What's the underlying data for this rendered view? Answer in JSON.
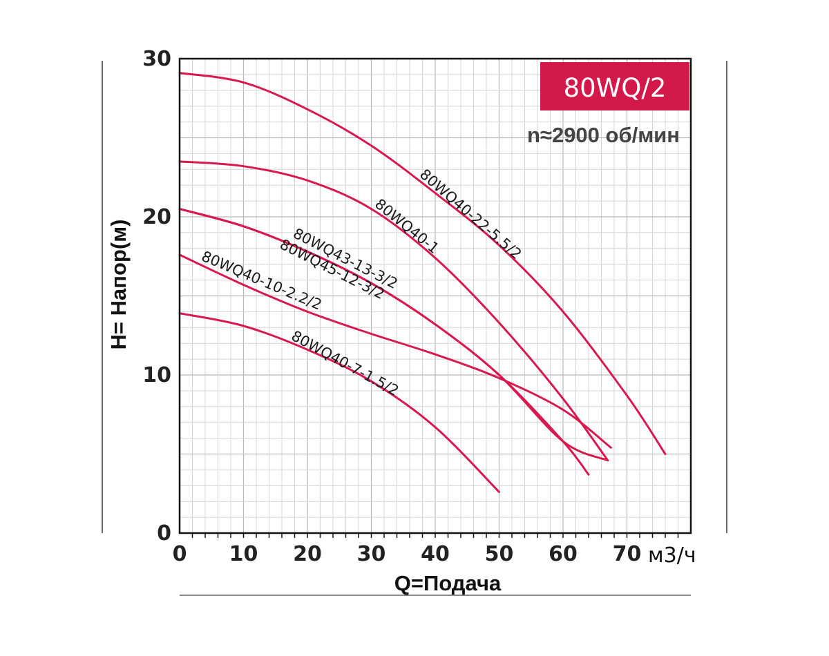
{
  "chart_data": {
    "type": "line",
    "title": "80WQ/2",
    "subtitle": "n≈2900 об/мин",
    "xlabel": "Q=Подача",
    "xunit": "м3/ч",
    "ylabel": "H= Напор(м)",
    "xlim": [
      0,
      80
    ],
    "ylim": [
      0,
      30
    ],
    "xticks": [
      "0",
      "10",
      "20",
      "30",
      "40",
      "50",
      "60",
      "70"
    ],
    "yticks": [
      "0",
      "10",
      "20",
      "30"
    ],
    "grid": true,
    "color": "#d7194f",
    "badge_color": "#d3194a",
    "series": [
      {
        "name": "80WQ40-22-5.5/2",
        "x": [
          0,
          10,
          20,
          30,
          40,
          50,
          60,
          70,
          76
        ],
        "y": [
          29.1,
          28.5,
          26.8,
          24.5,
          21.5,
          18.2,
          14.0,
          8.7,
          5.0
        ]
      },
      {
        "name": "80WQ40-1",
        "x": [
          0,
          10,
          20,
          30,
          40,
          50,
          60,
          67
        ],
        "y": [
          23.5,
          23.2,
          22.3,
          20.5,
          17.4,
          13.3,
          8.5,
          4.6
        ]
      },
      {
        "name": "80WQ43-13-3/2",
        "x": [
          0,
          10,
          20,
          30,
          40,
          50,
          60,
          64
        ],
        "y": [
          20.5,
          19.4,
          17.8,
          15.8,
          13.2,
          10.0,
          5.8,
          3.7
        ]
      },
      {
        "name": "80WQ45-12-3/2",
        "x": [
          0,
          10,
          20,
          30,
          40,
          50,
          60,
          67
        ],
        "y": [
          20.5,
          19.4,
          17.8,
          15.8,
          13.2,
          10.0,
          5.8,
          4.6
        ]
      },
      {
        "name": "80WQ40-10-2.2/2",
        "x": [
          0,
          10,
          20,
          30,
          40,
          50,
          60,
          67.5
        ],
        "y": [
          17.6,
          15.7,
          14.0,
          12.6,
          11.3,
          9.8,
          7.8,
          5.4
        ]
      },
      {
        "name": "80WQ40-7-1.5/2",
        "x": [
          0,
          10,
          20,
          30,
          40,
          50
        ],
        "y": [
          13.9,
          13.1,
          11.6,
          9.6,
          6.7,
          2.6
        ]
      }
    ]
  }
}
